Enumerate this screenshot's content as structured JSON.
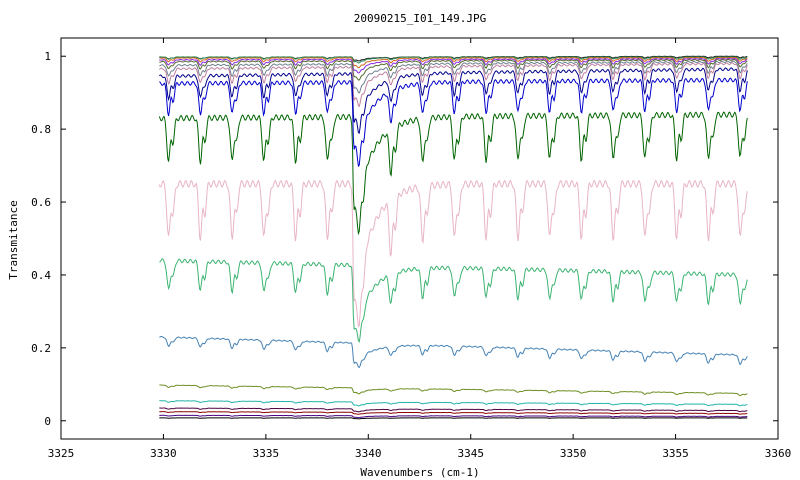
{
  "chart_data": {
    "type": "line",
    "title": "20090215_I01_149.JPG",
    "xlabel": "Wavenumbers (cm-1)",
    "ylabel": "Transmitance",
    "xlim": [
      3325,
      3360
    ],
    "ylim": [
      -0.05,
      1.05
    ],
    "xticks": [
      3325,
      3330,
      3335,
      3340,
      3345,
      3350,
      3355,
      3360
    ],
    "xtick_labels": [
      "3325",
      "3330",
      "3335",
      "3340",
      "3345",
      "3350",
      "3355",
      "3360"
    ],
    "yticks": [
      0,
      0.2,
      0.4,
      0.6,
      0.8,
      1
    ],
    "ytick_labels": [
      "0",
      "0.2",
      "0.4",
      "0.6",
      "0.8",
      "1"
    ],
    "grid": false,
    "legend": "none",
    "x_range_of_data": [
      3329.8,
      3358.5
    ],
    "strong_line_at": 3339.3,
    "line_spacing": 1.55,
    "series": [
      {
        "color": "#1e1e1e",
        "start": 0.997,
        "end": 1.0,
        "dip": 0.004
      },
      {
        "color": "#2e8b57",
        "start": 0.998,
        "end": 0.998,
        "dip": 0.006
      },
      {
        "color": "#d2691e",
        "start": 0.995,
        "end": 0.996,
        "dip": 0.01
      },
      {
        "color": "#8a2be2",
        "start": 0.99,
        "end": 0.993,
        "dip": 0.014
      },
      {
        "color": "#556b2f",
        "start": 0.985,
        "end": 0.99,
        "dip": 0.02
      },
      {
        "color": "#708090",
        "start": 0.975,
        "end": 0.985,
        "dip": 0.03
      },
      {
        "color": "#c080a0",
        "start": 0.965,
        "end": 0.98,
        "dip": 0.04
      },
      {
        "color": "#00008b",
        "start": 0.945,
        "end": 0.965,
        "dip": 0.06
      },
      {
        "color": "#0000cd",
        "start": 0.925,
        "end": 0.935,
        "dip": 0.085
      },
      {
        "color": "#006400",
        "start": 0.83,
        "end": 0.84,
        "dip": 0.12
      },
      {
        "color": "#e8b4c8",
        "start": 0.65,
        "end": 0.65,
        "dip": 0.15
      },
      {
        "color": "#3cb371",
        "start": 0.44,
        "end": 0.4,
        "dip": 0.08
      },
      {
        "color": "#4682b4",
        "start": 0.23,
        "end": 0.18,
        "dip": 0.025
      },
      {
        "color": "#6b8e23",
        "start": 0.098,
        "end": 0.075,
        "dip": 0.006
      },
      {
        "color": "#20b2aa",
        "start": 0.055,
        "end": 0.045,
        "dip": 0.004
      },
      {
        "color": "#4b0040",
        "start": 0.035,
        "end": 0.028,
        "dip": 0.003
      },
      {
        "color": "#8b0000",
        "start": 0.025,
        "end": 0.02,
        "dip": 0.002
      },
      {
        "color": "#4b0082",
        "start": 0.015,
        "end": 0.012,
        "dip": 0.002
      },
      {
        "color": "#000000",
        "start": 0.008,
        "end": 0.008,
        "dip": 0.001
      }
    ]
  }
}
